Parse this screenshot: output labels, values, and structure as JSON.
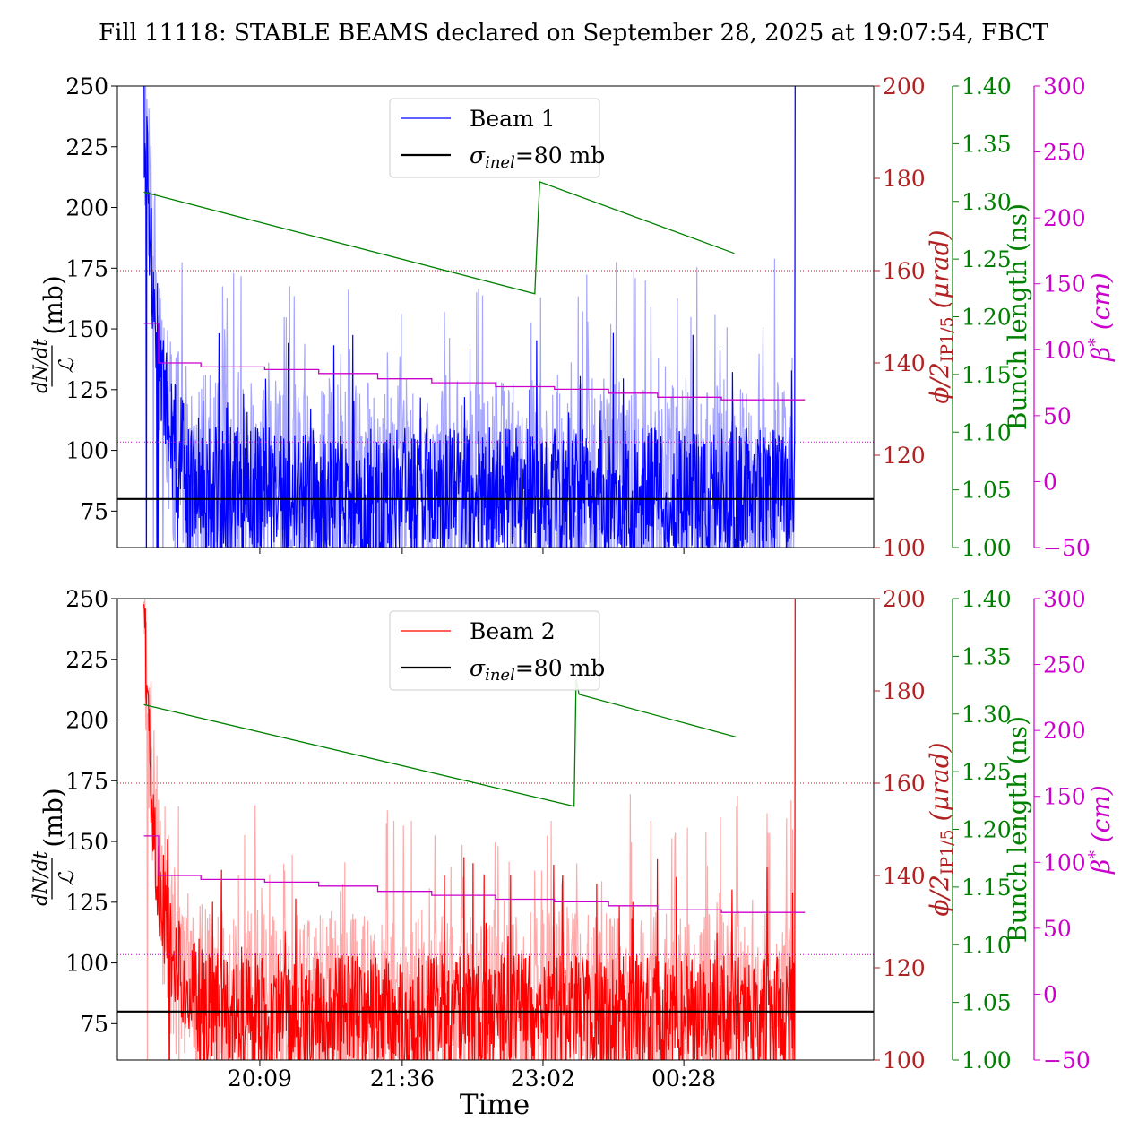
{
  "title": "Fill 11118: STABLE BEAMS declared on September 28, 2025 at 19:07:54, FBCT",
  "xlabel": "Time",
  "x_tick_labels": [
    "20:09",
    "21:36",
    "23:02",
    "00:28"
  ],
  "colors": {
    "beam1": "#0000ff",
    "beam1_light": "#a6a6ff",
    "beam2": "#ff0000",
    "beam2_light": "#ffaaaa",
    "reference": "#000000",
    "crossing_angle": "#b22222",
    "bunch_length": "#008000",
    "beta_star": "#cc00cc"
  },
  "axis_labels": {
    "left_num": "dN/dt",
    "left_den": "ℒ",
    "left_unit": "(mb)",
    "crossing_angle": "ϕ/2IP1/5 (μrad)",
    "crossing_angle_parts": {
      "main": "ϕ/2",
      "sub": "IP1/5",
      "unit": " (μrad)"
    },
    "bunch_length": "Bunch length (ns)",
    "beta_star": "β* (cm)",
    "beta_star_parts": {
      "main": "β",
      "sup": "*",
      "unit": " (cm)"
    }
  },
  "chart_data": [
    {
      "type": "line",
      "panel": "top",
      "x_range_hours": [
        18.7,
        26.4
      ],
      "x_ticks": [
        {
          "label": "20:09",
          "hour": 20.15
        },
        {
          "label": "21:36",
          "hour": 21.6
        },
        {
          "label": "23:02",
          "hour": 23.033
        },
        {
          "label": "00:28",
          "hour": 24.467
        }
      ],
      "legend": {
        "placement": "top-center",
        "entries": [
          {
            "label": "Beam 1",
            "kind": "beam"
          },
          {
            "label": "σinel=80 mb",
            "main": "σ",
            "sub": "inel",
            "rest": "=80 mb",
            "kind": "ref"
          }
        ]
      },
      "axes": {
        "left": {
          "label": "dN/dt / ℒ (mb)",
          "ylim": [
            60,
            250
          ],
          "ticks": [
            75,
            100,
            125,
            150,
            175,
            200,
            225,
            250
          ]
        },
        "crossing_angle": {
          "label": "ϕ/2IP1/5 (μrad)",
          "ylim": [
            100,
            200
          ],
          "ticks": [
            100,
            120,
            140,
            160,
            180,
            200
          ]
        },
        "bunch_length": {
          "label": "Bunch length (ns)",
          "ylim": [
            1.0,
            1.4
          ],
          "ticks": [
            "1.00",
            "1.05",
            "1.10",
            "1.15",
            "1.20",
            "1.25",
            "1.30",
            "1.35",
            "1.40"
          ]
        },
        "beta_star": {
          "label": "β* (cm)",
          "ylim": [
            -50,
            300
          ],
          "ticks": [
            "−50",
            "0",
            "50",
            "100",
            "150",
            "200",
            "250",
            "300"
          ]
        }
      },
      "series": [
        {
          "name": "Beam 1",
          "axis": "left",
          "kind": "noisy_loss",
          "t_start": 18.97,
          "t_end": 25.6,
          "peak_value": 250,
          "baseline": 85,
          "spread": 45,
          "spike_to": 180,
          "end_spike_to": 250
        },
        {
          "name": "σinel=80 mb",
          "axis": "left",
          "kind": "hline",
          "value": 80
        },
        {
          "axis": "crossing_angle",
          "kind": "hline_dotted",
          "value": 160
        },
        {
          "axis": "bunch_length",
          "kind": "polyline",
          "points": [
            [
              18.97,
              1.308
            ],
            [
              22.95,
              1.22
            ],
            [
              22.97,
              1.26
            ],
            [
              23.0,
              1.317
            ],
            [
              24.98,
              1.255
            ]
          ]
        },
        {
          "axis": "beta_star",
          "kind": "step",
          "points": [
            [
              18.97,
              120
            ],
            [
              19.12,
              120
            ],
            [
              19.12,
              90
            ],
            [
              19.55,
              90
            ],
            [
              19.55,
              87
            ],
            [
              20.2,
              87
            ],
            [
              20.2,
              85
            ],
            [
              20.75,
              85
            ],
            [
              20.75,
              82
            ],
            [
              21.35,
              82
            ],
            [
              21.35,
              78
            ],
            [
              21.9,
              78
            ],
            [
              21.9,
              75
            ],
            [
              22.55,
              75
            ],
            [
              22.55,
              72
            ],
            [
              23.15,
              72
            ],
            [
              23.15,
              70
            ],
            [
              23.7,
              70
            ],
            [
              23.7,
              67
            ],
            [
              24.2,
              67
            ],
            [
              24.2,
              64
            ],
            [
              24.85,
              64
            ],
            [
              24.85,
              62
            ],
            [
              25.7,
              62
            ]
          ]
        },
        {
          "axis": "beta_star",
          "kind": "hline_dotted",
          "value": 30
        }
      ]
    },
    {
      "type": "line",
      "panel": "bottom",
      "x_range_hours": [
        18.7,
        26.4
      ],
      "x_ticks": [
        {
          "label": "20:09",
          "hour": 20.15
        },
        {
          "label": "21:36",
          "hour": 21.6
        },
        {
          "label": "23:02",
          "hour": 23.033
        },
        {
          "label": "00:28",
          "hour": 24.467
        }
      ],
      "legend": {
        "placement": "top-center",
        "entries": [
          {
            "label": "Beam 2",
            "kind": "beam"
          },
          {
            "label": "σinel=80 mb",
            "main": "σ",
            "sub": "inel",
            "rest": "=80 mb",
            "kind": "ref"
          }
        ]
      },
      "axes": {
        "left": {
          "label": "dN/dt / ℒ (mb)",
          "ylim": [
            60,
            250
          ],
          "ticks": [
            75,
            100,
            125,
            150,
            175,
            200,
            225,
            250
          ]
        },
        "crossing_angle": {
          "label": "ϕ/2IP1/5 (μrad)",
          "ylim": [
            100,
            200
          ],
          "ticks": [
            100,
            120,
            140,
            160,
            180,
            200
          ]
        },
        "bunch_length": {
          "label": "Bunch length (ns)",
          "ylim": [
            1.0,
            1.4
          ],
          "ticks": [
            "1.00",
            "1.05",
            "1.10",
            "1.15",
            "1.20",
            "1.25",
            "1.30",
            "1.35",
            "1.40"
          ]
        },
        "beta_star": {
          "label": "β* (cm)",
          "ylim": [
            -50,
            300
          ],
          "ticks": [
            "−50",
            "0",
            "50",
            "100",
            "150",
            "200",
            "250",
            "300"
          ]
        }
      },
      "series": [
        {
          "name": "Beam 2",
          "axis": "left",
          "kind": "noisy_loss",
          "t_start": 18.97,
          "t_end": 25.6,
          "peak_value": 245,
          "baseline": 82,
          "spread": 40,
          "spike_to": 170,
          "end_spike_to": 250
        },
        {
          "name": "σinel=80 mb",
          "axis": "left",
          "kind": "hline",
          "value": 80
        },
        {
          "axis": "crossing_angle",
          "kind": "hline_dotted",
          "value": 160
        },
        {
          "axis": "bunch_length",
          "kind": "polyline",
          "points": [
            [
              18.97,
              1.308
            ],
            [
              23.35,
              1.22
            ],
            [
              23.37,
              1.33
            ],
            [
              23.4,
              1.317
            ],
            [
              25.0,
              1.28
            ]
          ]
        },
        {
          "axis": "beta_star",
          "kind": "step",
          "points": [
            [
              18.97,
              120
            ],
            [
              19.12,
              120
            ],
            [
              19.12,
              90
            ],
            [
              19.55,
              90
            ],
            [
              19.55,
              87
            ],
            [
              20.2,
              87
            ],
            [
              20.2,
              85
            ],
            [
              20.75,
              85
            ],
            [
              20.75,
              82
            ],
            [
              21.35,
              82
            ],
            [
              21.35,
              78
            ],
            [
              21.9,
              78
            ],
            [
              21.9,
              75
            ],
            [
              22.55,
              75
            ],
            [
              22.55,
              72
            ],
            [
              23.15,
              72
            ],
            [
              23.15,
              70
            ],
            [
              23.7,
              70
            ],
            [
              23.7,
              67
            ],
            [
              24.2,
              67
            ],
            [
              24.2,
              64
            ],
            [
              24.85,
              64
            ],
            [
              24.85,
              62
            ],
            [
              25.7,
              62
            ]
          ]
        },
        {
          "axis": "beta_star",
          "kind": "hline_dotted",
          "value": 30
        }
      ]
    }
  ]
}
